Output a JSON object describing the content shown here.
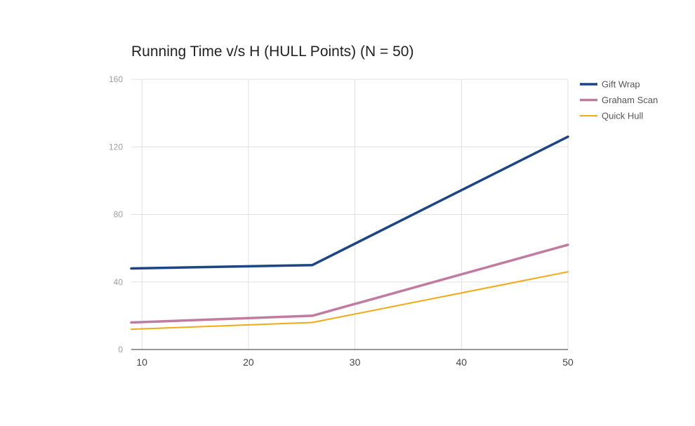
{
  "chart_data": {
    "type": "line",
    "title": "Running Time v/s H (HULL Points) (N = 50)",
    "xlabel": "",
    "ylabel": "",
    "x": [
      9,
      26,
      50
    ],
    "xlim": [
      9,
      50
    ],
    "ylim": [
      0,
      160
    ],
    "x_ticks": [
      10,
      20,
      30,
      40,
      50
    ],
    "y_ticks": [
      0,
      40,
      80,
      120,
      160
    ],
    "grid": true,
    "legend_position": "right",
    "series": [
      {
        "name": "Gift Wrap",
        "values": [
          48,
          50,
          126
        ],
        "color": "#1c4587"
      },
      {
        "name": "Graham Scan",
        "values": [
          16,
          20,
          62
        ],
        "color": "#c27ba0"
      },
      {
        "name": "Quick Hull",
        "values": [
          12,
          16,
          46
        ],
        "color": "#f1a915"
      }
    ]
  }
}
